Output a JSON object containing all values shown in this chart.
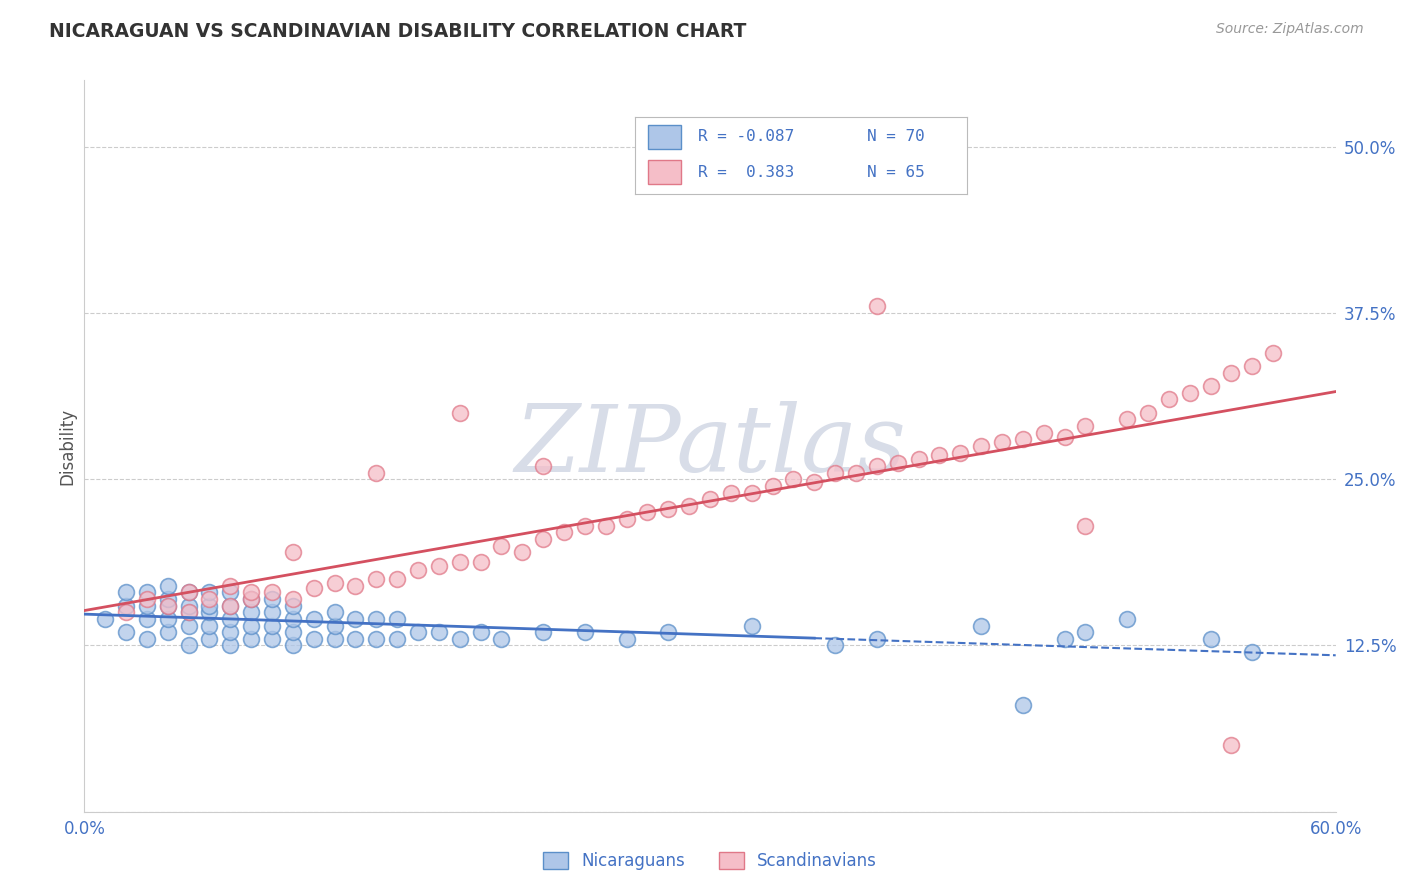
{
  "title": "NICARAGUAN VS SCANDINAVIAN DISABILITY CORRELATION CHART",
  "source": "Source: ZipAtlas.com",
  "ylabel": "Disability",
  "xlim": [
    0.0,
    0.6
  ],
  "ylim": [
    0.0,
    0.55
  ],
  "blue_color": "#aec6e8",
  "blue_edge_color": "#5b8fc9",
  "pink_color": "#f5bec8",
  "pink_edge_color": "#e07888",
  "blue_line_color": "#4472c4",
  "pink_line_color": "#d45060",
  "title_color": "#333333",
  "axis_label_color": "#555555",
  "tick_color": "#4472c4",
  "grid_color": "#cccccc",
  "legend_text_color": "#4472c4",
  "watermark_color": "#d8dde8",
  "source_color": "#999999",
  "blue_x": [
    0.01,
    0.02,
    0.02,
    0.02,
    0.03,
    0.03,
    0.03,
    0.03,
    0.04,
    0.04,
    0.04,
    0.04,
    0.04,
    0.05,
    0.05,
    0.05,
    0.05,
    0.05,
    0.06,
    0.06,
    0.06,
    0.06,
    0.06,
    0.07,
    0.07,
    0.07,
    0.07,
    0.07,
    0.08,
    0.08,
    0.08,
    0.08,
    0.09,
    0.09,
    0.09,
    0.09,
    0.1,
    0.1,
    0.1,
    0.1,
    0.11,
    0.11,
    0.12,
    0.12,
    0.12,
    0.13,
    0.13,
    0.14,
    0.14,
    0.15,
    0.15,
    0.16,
    0.17,
    0.18,
    0.19,
    0.2,
    0.22,
    0.24,
    0.26,
    0.28,
    0.32,
    0.36,
    0.38,
    0.43,
    0.45,
    0.47,
    0.48,
    0.5,
    0.54,
    0.56
  ],
  "blue_y": [
    0.145,
    0.135,
    0.155,
    0.165,
    0.13,
    0.145,
    0.155,
    0.165,
    0.135,
    0.145,
    0.155,
    0.16,
    0.17,
    0.125,
    0.14,
    0.15,
    0.155,
    0.165,
    0.13,
    0.14,
    0.15,
    0.155,
    0.165,
    0.125,
    0.135,
    0.145,
    0.155,
    0.165,
    0.13,
    0.14,
    0.15,
    0.16,
    0.13,
    0.14,
    0.15,
    0.16,
    0.125,
    0.135,
    0.145,
    0.155,
    0.13,
    0.145,
    0.13,
    0.14,
    0.15,
    0.13,
    0.145,
    0.13,
    0.145,
    0.13,
    0.145,
    0.135,
    0.135,
    0.13,
    0.135,
    0.13,
    0.135,
    0.135,
    0.13,
    0.135,
    0.14,
    0.125,
    0.13,
    0.14,
    0.08,
    0.13,
    0.135,
    0.145,
    0.13,
    0.12
  ],
  "pink_x": [
    0.02,
    0.03,
    0.04,
    0.05,
    0.05,
    0.06,
    0.07,
    0.07,
    0.08,
    0.08,
    0.09,
    0.1,
    0.11,
    0.12,
    0.13,
    0.14,
    0.15,
    0.16,
    0.17,
    0.18,
    0.19,
    0.2,
    0.21,
    0.22,
    0.23,
    0.24,
    0.25,
    0.26,
    0.27,
    0.28,
    0.29,
    0.3,
    0.31,
    0.32,
    0.33,
    0.34,
    0.35,
    0.36,
    0.37,
    0.38,
    0.39,
    0.4,
    0.41,
    0.42,
    0.43,
    0.44,
    0.45,
    0.46,
    0.47,
    0.48,
    0.5,
    0.51,
    0.52,
    0.53,
    0.54,
    0.55,
    0.56,
    0.57,
    0.1,
    0.14,
    0.18,
    0.22,
    0.38,
    0.48,
    0.55
  ],
  "pink_y": [
    0.15,
    0.16,
    0.155,
    0.15,
    0.165,
    0.16,
    0.155,
    0.17,
    0.16,
    0.165,
    0.165,
    0.16,
    0.168,
    0.172,
    0.17,
    0.175,
    0.175,
    0.182,
    0.185,
    0.188,
    0.188,
    0.2,
    0.195,
    0.205,
    0.21,
    0.215,
    0.215,
    0.22,
    0.225,
    0.228,
    0.23,
    0.235,
    0.24,
    0.24,
    0.245,
    0.25,
    0.248,
    0.255,
    0.255,
    0.26,
    0.262,
    0.265,
    0.268,
    0.27,
    0.275,
    0.278,
    0.28,
    0.285,
    0.282,
    0.29,
    0.295,
    0.3,
    0.31,
    0.315,
    0.32,
    0.33,
    0.335,
    0.345,
    0.195,
    0.255,
    0.3,
    0.26,
    0.38,
    0.215,
    0.05
  ]
}
